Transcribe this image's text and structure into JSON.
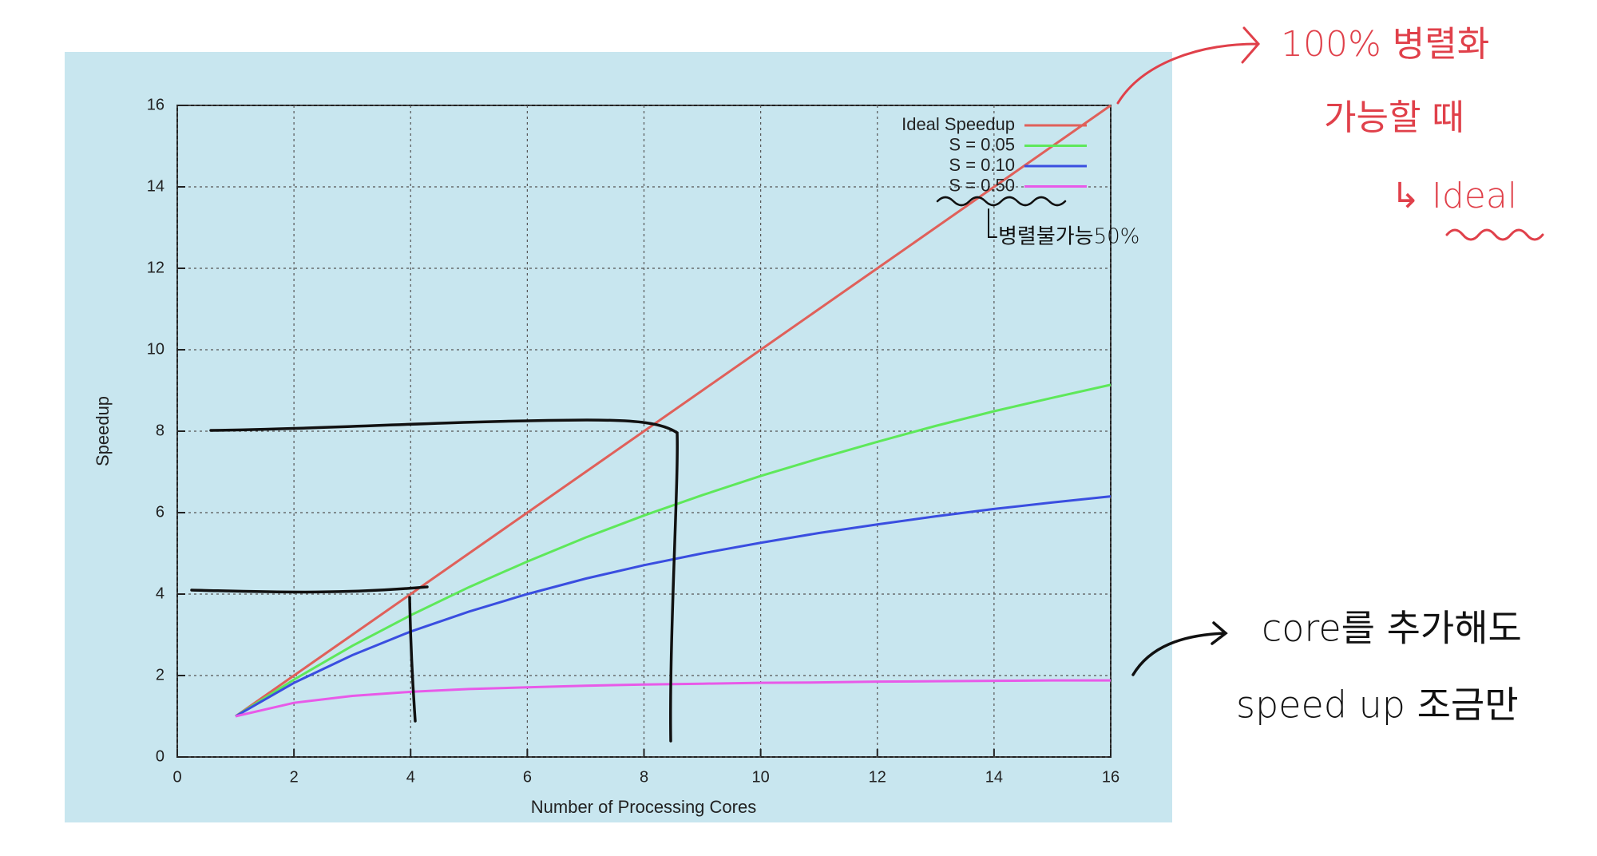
{
  "chart_data": {
    "type": "line",
    "x_label": "Number of Processing Cores",
    "y_label": "Speedup",
    "x": [
      1,
      2,
      3,
      4,
      5,
      6,
      7,
      8,
      9,
      10,
      11,
      12,
      13,
      14,
      15,
      16
    ],
    "series": [
      {
        "name": "Ideal Speedup",
        "color": "#e0605a",
        "values": [
          1,
          2,
          3,
          4,
          5,
          6,
          7,
          8,
          9,
          10,
          11,
          12,
          13,
          14,
          15,
          16
        ]
      },
      {
        "name": "S = 0.05",
        "color": "#5ee85a",
        "values": [
          1,
          1.9,
          2.73,
          3.48,
          4.17,
          4.8,
          5.39,
          5.93,
          6.43,
          6.9,
          7.33,
          7.74,
          8.13,
          8.49,
          8.82,
          9.14
        ]
      },
      {
        "name": "S = 0.10",
        "color": "#3a4ee0",
        "values": [
          1,
          1.82,
          2.5,
          3.08,
          3.57,
          4,
          4.38,
          4.71,
          5,
          5.26,
          5.5,
          5.71,
          5.91,
          6.09,
          6.25,
          6.4
        ]
      },
      {
        "name": "S = 0.50",
        "color": "#e85ae8",
        "values": [
          1,
          1.33,
          1.5,
          1.6,
          1.67,
          1.71,
          1.75,
          1.78,
          1.8,
          1.82,
          1.83,
          1.85,
          1.86,
          1.87,
          1.88,
          1.88
        ]
      }
    ],
    "xlim": [
      0,
      16
    ],
    "ylim": [
      0,
      16
    ],
    "xticks": [
      0,
      2,
      4,
      6,
      8,
      10,
      12,
      14,
      16
    ],
    "yticks": [
      0,
      2,
      4,
      6,
      8,
      10,
      12,
      14,
      16
    ],
    "grid": true,
    "legend": "upper right"
  },
  "annotations": [
    "100% 병렬화",
    "가능할 때",
    "↳ Ideal",
    "병렬불가능50%",
    "core를 추가해도",
    "speed up 조금만"
  ]
}
